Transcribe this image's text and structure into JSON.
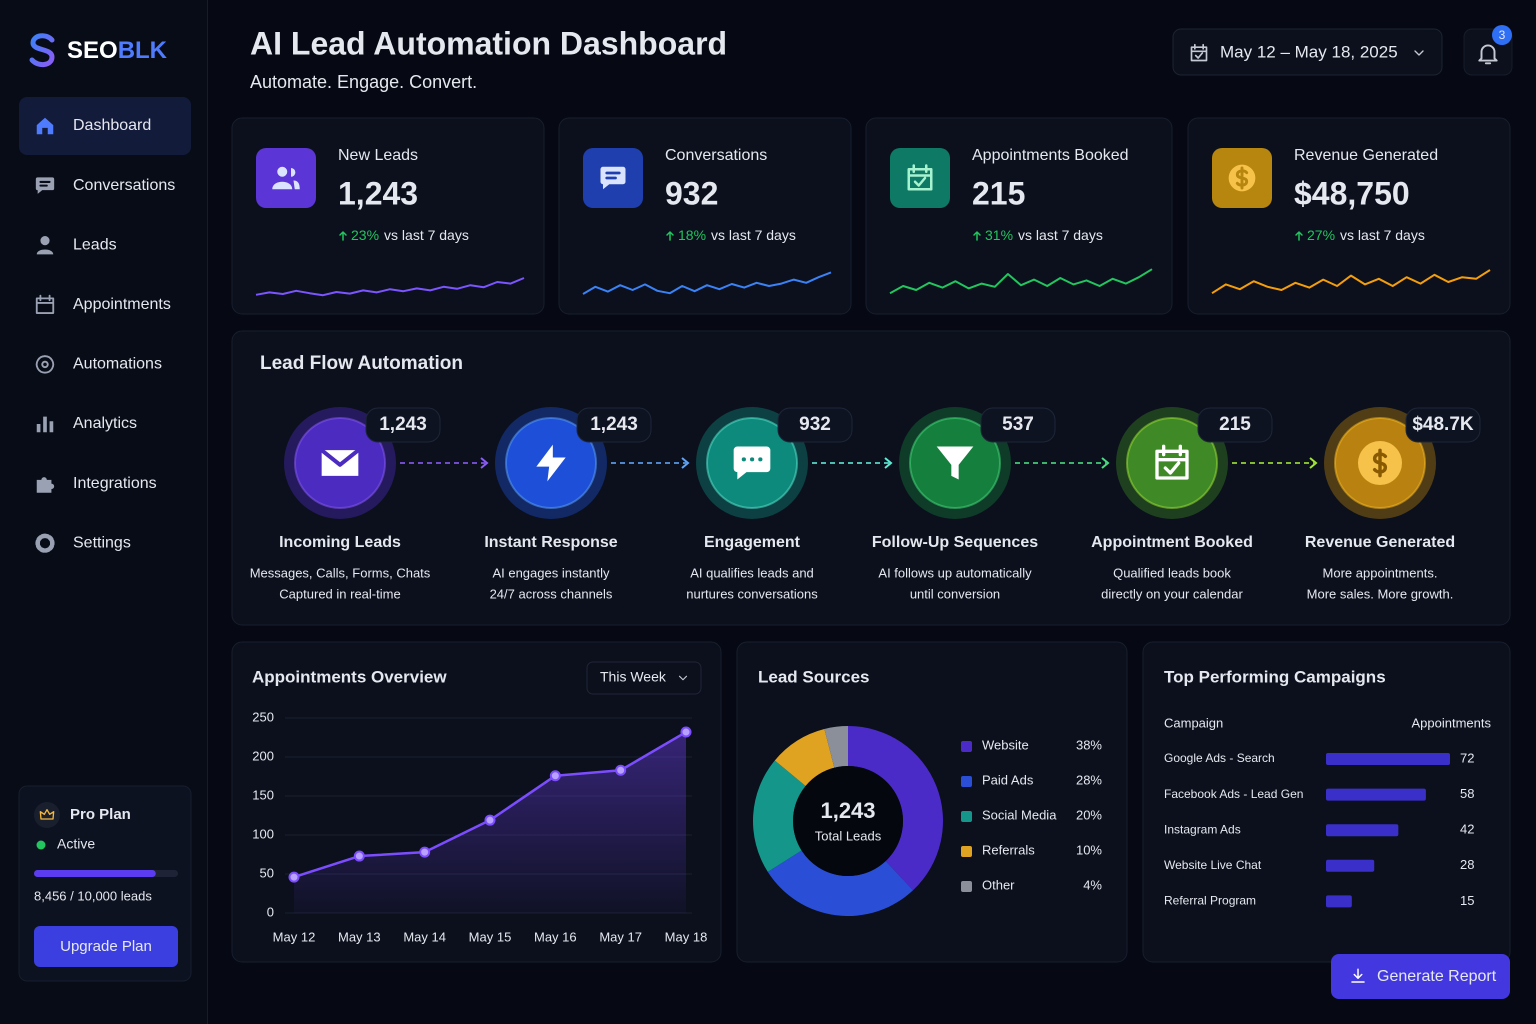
{
  "sidebar": {
    "brand_prefix": "SEO",
    "brand_suffix": "BLK",
    "nav": [
      {
        "label": "Dashboard",
        "active": true
      },
      {
        "label": "Conversations",
        "active": false
      },
      {
        "label": "Leads",
        "active": false
      },
      {
        "label": "Appointments",
        "active": false
      },
      {
        "label": "Automations",
        "active": false
      },
      {
        "label": "Analytics",
        "active": false
      },
      {
        "label": "Integrations",
        "active": false
      },
      {
        "label": "Settings",
        "active": false
      }
    ],
    "plan": {
      "name": "Pro Plan",
      "status": "Active",
      "usage": 8456,
      "limit": 10000,
      "usage_label": "8,456 / 10,000 leads",
      "button": "Upgrade Plan"
    }
  },
  "header": {
    "title": "AI Lead Automation Dashboard",
    "subtitle": "Automate. Engage. Convert.",
    "date_range": "May 12 – May 18, 2025",
    "notifications": 3
  },
  "kpis": [
    {
      "label": "New Leads",
      "value": "1,243",
      "change": "23%",
      "compare": "vs last 7 days",
      "icon_color": "#5b35d5",
      "color": "#7b55ff",
      "trend": [
        18,
        24,
        20,
        28,
        22,
        17,
        25,
        21,
        29,
        24,
        32,
        27,
        34,
        29,
        38,
        33,
        42,
        37,
        50,
        46,
        60
      ],
      "ylim": [
        0,
        100
      ]
    },
    {
      "label": "Conversations",
      "value": "932",
      "change": "18%",
      "compare": "vs last 7 days",
      "icon_color": "#1f3fae",
      "color": "#3b82f6",
      "trend": [
        20,
        38,
        26,
        42,
        30,
        44,
        28,
        22,
        40,
        27,
        42,
        32,
        45,
        36,
        48,
        40,
        46,
        56,
        48,
        62,
        74
      ],
      "ylim": [
        0,
        100
      ]
    },
    {
      "label": "Appointments Booked",
      "value": "215",
      "change": "31%",
      "compare": "vs last 7 days",
      "icon_color": "#0e7a66",
      "color": "#22c55e",
      "trend": [
        22,
        40,
        30,
        48,
        36,
        52,
        34,
        46,
        38,
        70,
        42,
        56,
        40,
        60,
        44,
        54,
        40,
        58,
        46,
        62,
        82
      ],
      "ylim": [
        0,
        100
      ]
    },
    {
      "label": "Revenue Generated",
      "value": "$48,750",
      "change": "27%",
      "compare": "vs last 7 days",
      "icon_color": "#b7860f",
      "color": "#f59e0b",
      "trend": [
        22,
        44,
        32,
        52,
        38,
        30,
        48,
        36,
        56,
        40,
        66,
        44,
        58,
        40,
        62,
        46,
        68,
        50,
        62,
        58,
        80
      ],
      "ylim": [
        0,
        100
      ]
    }
  ],
  "lead_flow": {
    "title": "Lead Flow Automation",
    "steps": [
      {
        "badge": "1,243",
        "title": "Incoming Leads",
        "desc": [
          "Messages, Calls, Forms, Chats",
          "Captured in real-time"
        ],
        "color": "#4b2bc0",
        "accent": "#8b5cf6"
      },
      {
        "badge": "1,243",
        "title": "Instant Response",
        "desc": [
          "AI engages instantly",
          "24/7 across channels"
        ],
        "color": "#1d4fd8",
        "accent": "#60a5fa"
      },
      {
        "badge": "932",
        "title": "Engagement",
        "desc": [
          "AI qualifies leads and",
          "nurtures conversations"
        ],
        "color": "#0e8a7c",
        "accent": "#5eead4"
      },
      {
        "badge": "537",
        "title": "Follow-Up Sequences",
        "desc": [
          "AI follows up automatically",
          "until conversion"
        ],
        "color": "#15803d",
        "accent": "#4ade80"
      },
      {
        "badge": "215",
        "title": "Appointment Booked",
        "desc": [
          "Qualified leads book",
          "directly on your calendar"
        ],
        "color": "#3f8a26",
        "accent": "#a3e635"
      },
      {
        "badge": "$48.7K",
        "title": "Revenue Generated",
        "desc": [
          "More appointments.",
          "More sales. More growth."
        ],
        "color": "#b98110",
        "accent": "#fbbf24"
      }
    ]
  },
  "chart_data": [
    {
      "type": "line",
      "title": "Appointments Overview",
      "filter": "This Week",
      "categories": [
        "May 12",
        "May 13",
        "May 14",
        "May 15",
        "May 16",
        "May 17",
        "May 18"
      ],
      "values": [
        46,
        73,
        78,
        119,
        176,
        183,
        232
      ],
      "color": "#7c4dff",
      "ylim": [
        0,
        250
      ],
      "yticks": [
        0,
        50,
        100,
        150,
        200,
        250
      ],
      "grid": true
    },
    {
      "type": "pie",
      "title": "Lead Sources",
      "center_value": "1,243",
      "center_label": "Total Leads",
      "categories": [
        "Website",
        "Paid Ads",
        "Social Media",
        "Referrals",
        "Other"
      ],
      "values": [
        38,
        28,
        20,
        10,
        4
      ],
      "value_labels": [
        "38%",
        "28%",
        "20%",
        "10%",
        "4%"
      ],
      "colors": [
        "#4b2bc8",
        "#2a4fd6",
        "#14978a",
        "#e0a321",
        "#8a8f99"
      ]
    },
    {
      "type": "bar",
      "orientation": "horizontal",
      "title": "Top Performing Campaigns",
      "category_header": "Campaign",
      "value_header": "Appointments",
      "categories": [
        "Google Ads - Search",
        "Facebook Ads - Lead Gen",
        "Instagram Ads",
        "Website Live Chat",
        "Referral Program"
      ],
      "values": [
        72,
        58,
        42,
        28,
        15
      ],
      "color": "#3b2fc9"
    }
  ],
  "actions": {
    "generate_report": "Generate Report"
  }
}
